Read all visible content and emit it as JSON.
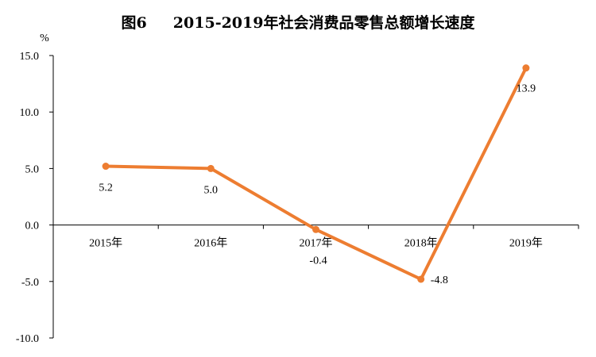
{
  "title": "图6     2015-2019年社会消费品零售总额增长速度",
  "chart_data": {
    "type": "line",
    "title": "图6     2015-2019年社会消费品零售总额增长速度",
    "ylabel": "%",
    "xlabel": "",
    "categories": [
      "2015年",
      "2016年",
      "2017年",
      "2018年",
      "2019年"
    ],
    "series": [
      {
        "values": [
          5.2,
          5.0,
          -0.4,
          -4.8,
          13.9
        ],
        "labels": [
          "5.2",
          "5.0",
          "-0.4",
          "-4.8",
          "13.9"
        ]
      }
    ],
    "ylim": [
      -10,
      15
    ],
    "yticks": [
      15,
      10,
      5,
      0,
      -5,
      -10
    ],
    "ytick_labels": [
      "15.0",
      "10.0",
      "5.0",
      "0.0",
      "-5.0",
      "-10.0"
    ],
    "grid": false,
    "legend": "none",
    "colors": {
      "line": "#ED7D31",
      "axis": "#000000"
    }
  }
}
